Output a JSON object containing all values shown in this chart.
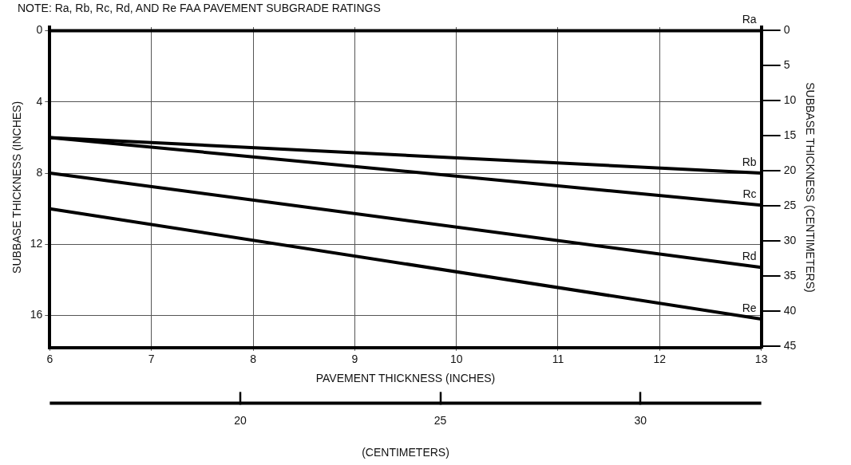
{
  "chart_data": {
    "type": "line",
    "annotations": [
      "NOTE: Ra, Rb, Rc, Rd, AND Re FAA PAVEMENT SUBGRADE RATINGS"
    ],
    "xlabel": "PAVEMENT THICKNESS (INCHES)",
    "ylabel": "SUBBASE THICKNESS (INCHES)",
    "y2label": "SUBBASE THICKNESS (CENTIMETERS)",
    "x2label": "(CENTIMETERS)",
    "series": [
      {
        "name": "Ra",
        "color": "#000000",
        "values": [
          0,
          0
        ]
      },
      {
        "name": "Rb",
        "color": "#000000",
        "values": [
          6.0,
          8.0
        ]
      },
      {
        "name": "Rc",
        "color": "#000000",
        "values": [
          6.0,
          9.8
        ]
      },
      {
        "name": "Rd",
        "color": "#000000",
        "values": [
          8.0,
          13.3
        ]
      },
      {
        "name": "Re",
        "color": "#000000",
        "values": [
          10.0,
          16.2
        ]
      }
    ],
    "x": [
      6,
      13
    ],
    "xlim": [
      6,
      13
    ],
    "xticks": [
      6,
      7,
      8,
      9,
      10,
      11,
      12,
      13
    ],
    "ylim": [
      17.8,
      -0.2
    ],
    "yticks": [
      0,
      4,
      8,
      12,
      16
    ],
    "y2lim": [
      45.2,
      -0.5
    ],
    "y2ticks": [
      0,
      5,
      10,
      15,
      20,
      25,
      30,
      35,
      40,
      45
    ],
    "x2lim": [
      15.24,
      33.02
    ],
    "x2ticks": [
      20,
      25,
      30
    ],
    "grid": true,
    "legend": "right",
    "marker": "none",
    "line_style": "solid"
  }
}
